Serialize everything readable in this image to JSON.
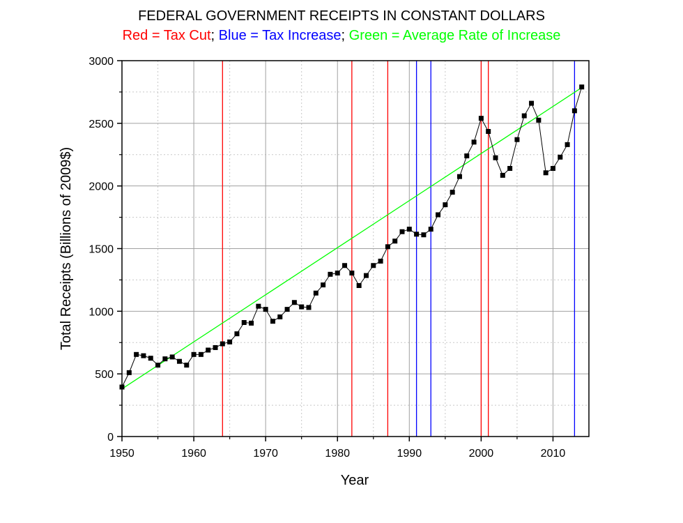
{
  "chart_data": {
    "type": "line",
    "title": "FEDERAL GOVERNMENT RECEIPTS IN CONSTANT DOLLARS",
    "subtitle_parts": [
      {
        "text": "Red = Tax Cut",
        "color": "#ff0000"
      },
      {
        "text": "; ",
        "color": "#000000"
      },
      {
        "text": "Blue = Tax Increase",
        "color": "#0000ff"
      },
      {
        "text": "; ",
        "color": "#000000"
      },
      {
        "text": "Green = Average Rate of Increase",
        "color": "#00ff00"
      }
    ],
    "xlabel": "Year",
    "ylabel": "Total Receipts (Billions of 2009$)",
    "xlim": [
      1950,
      2015
    ],
    "ylim": [
      0,
      3000
    ],
    "x_ticks": [
      1950,
      1960,
      1970,
      1980,
      1990,
      2000,
      2010
    ],
    "y_ticks": [
      0,
      500,
      1000,
      1500,
      2000,
      2500,
      3000
    ],
    "grid": true,
    "series": [
      {
        "color": "#000000",
        "marker": "square",
        "x": [
          1950,
          1951,
          1952,
          1953,
          1954,
          1955,
          1956,
          1957,
          1958,
          1959,
          1960,
          1961,
          1962,
          1963,
          1964,
          1965,
          1966,
          1967,
          1968,
          1969,
          1970,
          1971,
          1972,
          1973,
          1974,
          1975,
          1976,
          1977,
          1978,
          1979,
          1980,
          1981,
          1982,
          1983,
          1984,
          1985,
          1986,
          1987,
          1988,
          1989,
          1990,
          1991,
          1992,
          1993,
          1994,
          1995,
          1996,
          1997,
          1998,
          1999,
          2000,
          2001,
          2002,
          2003,
          2004,
          2005,
          2006,
          2007,
          2008,
          2009,
          2010,
          2011,
          2012,
          2013,
          2014
        ],
        "values": [
          395,
          510,
          655,
          645,
          625,
          570,
          620,
          635,
          600,
          570,
          655,
          655,
          690,
          710,
          740,
          755,
          820,
          910,
          905,
          1040,
          1015,
          920,
          955,
          1015,
          1070,
          1035,
          1030,
          1145,
          1210,
          1295,
          1305,
          1365,
          1305,
          1205,
          1285,
          1365,
          1400,
          1515,
          1560,
          1635,
          1655,
          1615,
          1610,
          1655,
          1770,
          1850,
          1950,
          2075,
          2240,
          2350,
          2540,
          2435,
          2225,
          2085,
          2140,
          2370,
          2560,
          2660,
          2525,
          2105,
          2140,
          2230,
          2330,
          2600,
          2790
        ]
      }
    ],
    "trend_line": {
      "color": "#00ff00",
      "x": [
        1950,
        2014
      ],
      "values": [
        380,
        2785
      ]
    },
    "vertical_lines": [
      {
        "x": 1964,
        "color": "#ff0000"
      },
      {
        "x": 1982,
        "color": "#ff0000"
      },
      {
        "x": 1987,
        "color": "#ff0000"
      },
      {
        "x": 1991,
        "color": "#0000ff"
      },
      {
        "x": 1993,
        "color": "#0000ff"
      },
      {
        "x": 2000,
        "color": "#ff0000"
      },
      {
        "x": 2001,
        "color": "#ff0000"
      },
      {
        "x": 2013,
        "color": "#0000ff"
      }
    ]
  }
}
